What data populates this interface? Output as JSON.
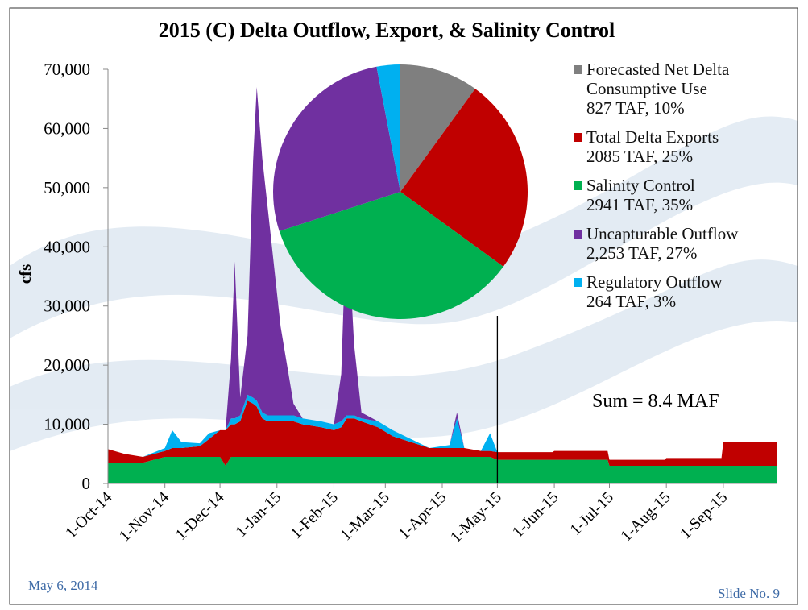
{
  "chart_data": [
    {
      "type": "stacked_area",
      "title": "2015 (C) Delta Outflow, Export, & Salinity Control",
      "y_label": "cfs",
      "annotation": "Sum = 8.4 MAF",
      "vertical_line_x": "2015-05-01",
      "x": [
        "2014-10-01",
        "2014-10-10",
        "2014-10-20",
        "2014-11-01",
        "2014-11-05",
        "2014-11-10",
        "2014-11-20",
        "2014-11-25",
        "2014-12-01",
        "2014-12-04",
        "2014-12-07",
        "2014-12-09",
        "2014-12-12",
        "2014-12-16",
        "2014-12-19",
        "2014-12-21",
        "2014-12-24",
        "2014-12-27",
        "2015-01-03",
        "2015-01-10",
        "2015-01-15",
        "2015-01-25",
        "2015-02-01",
        "2015-02-05",
        "2015-02-08",
        "2015-02-12",
        "2015-02-16",
        "2015-02-25",
        "2015-03-05",
        "2015-03-15",
        "2015-03-25",
        "2015-04-05",
        "2015-04-09",
        "2015-04-13",
        "2015-04-22",
        "2015-04-27",
        "2015-05-01",
        "2015-05-31",
        "2015-06-01",
        "2015-06-30",
        "2015-07-01",
        "2015-07-31",
        "2015-08-01",
        "2015-08-31",
        "2015-09-01",
        "2015-09-30"
      ],
      "series": [
        {
          "name": "Salinity Control",
          "color": "#00b050",
          "values": [
            3500,
            3500,
            3500,
            4500,
            4500,
            4500,
            4500,
            4500,
            4500,
            3000,
            4500,
            4500,
            4500,
            4500,
            4500,
            4500,
            4500,
            4500,
            4500,
            4500,
            4500,
            4500,
            4500,
            4500,
            4500,
            4500,
            4500,
            4500,
            4500,
            4500,
            4500,
            4500,
            4500,
            4500,
            4500,
            4500,
            4000,
            4000,
            4000,
            4000,
            3000,
            3000,
            3000,
            3000,
            3000,
            3000
          ]
        },
        {
          "name": "Total Delta Exports",
          "color": "#c00000",
          "values": [
            2300,
            1500,
            1000,
            1000,
            1500,
            1500,
            1800,
            3000,
            4500,
            6000,
            5500,
            5500,
            6000,
            9500,
            9000,
            8500,
            6500,
            6000,
            6000,
            6000,
            5500,
            5000,
            4500,
            5000,
            6500,
            6500,
            6000,
            5000,
            3500,
            2500,
            1500,
            1500,
            1500,
            1500,
            1000,
            1000,
            1300,
            1300,
            1500,
            1500,
            1000,
            1000,
            1300,
            1300,
            4000,
            4000
          ]
        },
        {
          "name": "Regulatory Outflow",
          "color": "#00b0f0",
          "values": [
            0,
            0,
            0,
            500,
            3000,
            1000,
            500,
            1000,
            0,
            0,
            1000,
            1000,
            1000,
            1000,
            1000,
            1000,
            1000,
            1000,
            1000,
            1000,
            1000,
            1000,
            1000,
            1000,
            500,
            500,
            500,
            1000,
            1000,
            500,
            0,
            500,
            5000,
            0,
            0,
            3000,
            0,
            0,
            0,
            0,
            0,
            0,
            0,
            0,
            0,
            0
          ]
        },
        {
          "name": "Uncapturable Outflow",
          "color": "#7030a0",
          "values": [
            0,
            0,
            0,
            0,
            0,
            0,
            0,
            0,
            0,
            0,
            10000,
            26500,
            3000,
            10000,
            40000,
            53000,
            43000,
            35000,
            15000,
            2000,
            0,
            0,
            0,
            8000,
            35000,
            12000,
            1000,
            0,
            0,
            0,
            0,
            0,
            1000,
            0,
            0,
            0,
            0,
            0,
            0,
            0,
            0,
            0,
            0,
            0,
            0,
            0
          ]
        }
      ],
      "xlim": [
        "2014-10-01",
        "2015-09-30"
      ],
      "xticks": [
        {
          "value": "2014-10-01",
          "label": "1-Oct-14"
        },
        {
          "value": "2014-11-01",
          "label": "1-Nov-14"
        },
        {
          "value": "2014-12-01",
          "label": "1-Dec-14"
        },
        {
          "value": "2015-01-01",
          "label": "1-Jan-15"
        },
        {
          "value": "2015-02-01",
          "label": "1-Feb-15"
        },
        {
          "value": "2015-03-01",
          "label": "1-Mar-15"
        },
        {
          "value": "2015-04-01",
          "label": "1-Apr-15"
        },
        {
          "value": "2015-05-01",
          "label": "1-May-15"
        },
        {
          "value": "2015-06-01",
          "label": "1-Jun-15"
        },
        {
          "value": "2015-07-01",
          "label": "1-Jul-15"
        },
        {
          "value": "2015-08-01",
          "label": "1-Aug-15"
        },
        {
          "value": "2015-09-01",
          "label": "1-Sep-15"
        }
      ],
      "ylim": [
        0,
        70000
      ],
      "yticks": [
        0,
        {
          "value": 10000,
          "label": "10,000"
        },
        {
          "value": 20000,
          "label": "20,000"
        },
        {
          "value": 30000,
          "label": "30,000"
        },
        {
          "value": 40000,
          "label": "40,000"
        },
        {
          "value": 50000,
          "label": "50,000"
        },
        {
          "value": 60000,
          "label": "60,000"
        },
        {
          "value": 70000,
          "label": "70,000"
        }
      ]
    },
    {
      "type": "pie",
      "categories": [
        "Forecasted Net Delta Consumptive Use",
        "Total Delta Exports",
        "Salinity Control",
        "Uncapturable Outflow",
        "Regulatory Outflow"
      ],
      "values": [
        10,
        25,
        35,
        27,
        3
      ],
      "value_labels": [
        "827 TAF, 10%",
        "2085 TAF, 25%",
        "2941 TAF, 35%",
        "2,253 TAF, 27%",
        "264 TAF, 3%"
      ],
      "colors": [
        "#7f7f7f",
        "#c00000",
        "#00b050",
        "#7030a0",
        "#00b0f0"
      ]
    }
  ],
  "footer": {
    "date": "May 6, 2014",
    "slide": "Slide No. 9"
  }
}
